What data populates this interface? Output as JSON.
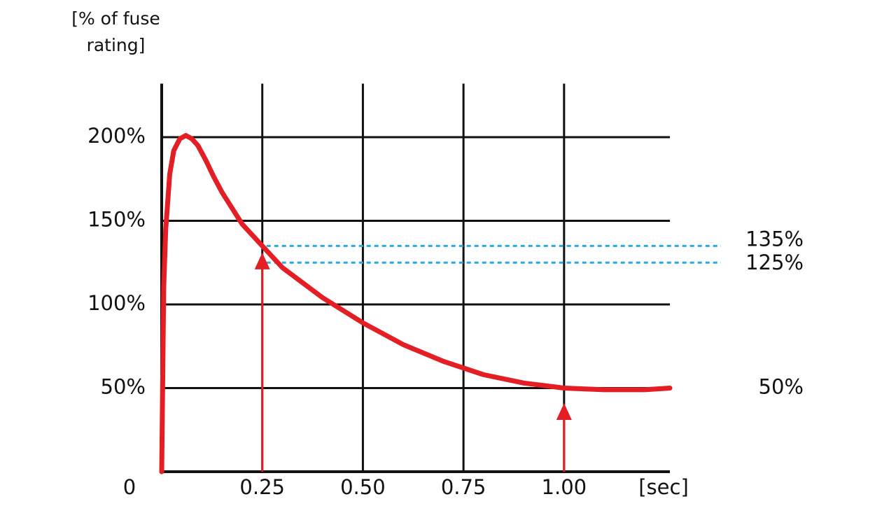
{
  "chart_data": {
    "type": "line",
    "y_label": "[% of fuse rating]",
    "x_label": "[sec]",
    "xlim": [
      0,
      1.263
    ],
    "ylim": [
      0,
      232
    ],
    "xticks": [
      {
        "value": 0,
        "label": "0"
      },
      {
        "value": 0.25,
        "label": "0.25"
      },
      {
        "value": 0.5,
        "label": "0.50"
      },
      {
        "value": 0.75,
        "label": "0.75"
      },
      {
        "value": 1,
        "label": "1.00"
      }
    ],
    "yticks": [
      {
        "value": 50,
        "label": "50%"
      },
      {
        "value": 100,
        "label": "100%"
      },
      {
        "value": 150,
        "label": "150%"
      },
      {
        "value": 200,
        "label": "200%"
      }
    ],
    "grid": true,
    "series": [
      {
        "color": "#e31e24",
        "x": [
          0,
          0.005,
          0.01,
          0.02,
          0.03,
          0.045,
          0.06,
          0.075,
          0.09,
          0.11,
          0.13,
          0.15,
          0.2,
          0.25,
          0.3,
          0.4,
          0.5,
          0.6,
          0.7,
          0.8,
          0.9,
          1.0,
          1.1,
          1.2,
          1.263
        ],
        "values": [
          0,
          110,
          145,
          178,
          192,
          199,
          201,
          199,
          195,
          186,
          176,
          167,
          148,
          135,
          122,
          104,
          89,
          76,
          66,
          58,
          53,
          50,
          49,
          49,
          50
        ]
      }
    ],
    "reference_lines": [
      {
        "value": 135,
        "label": "135%",
        "color": "#29abe2"
      },
      {
        "value": 125,
        "label": "125%",
        "color": "#29abe2"
      }
    ],
    "annotations": [
      {
        "text": "50%",
        "y": 50
      }
    ],
    "arrows": [
      {
        "x": 0.25,
        "y": 131
      },
      {
        "x": 1.0,
        "y": 41
      }
    ]
  }
}
